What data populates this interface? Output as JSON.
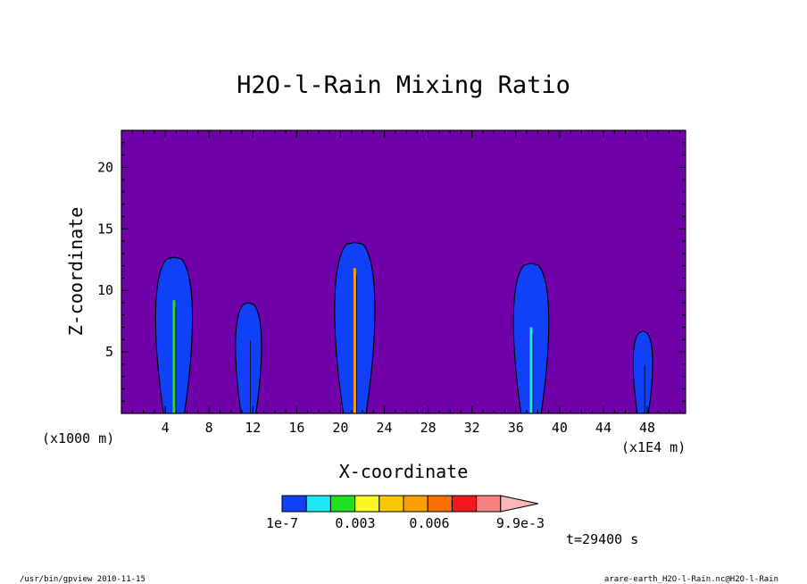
{
  "chart_data": {
    "type": "contour",
    "title": "H2O-l-Rain Mixing Ratio",
    "xlabel": "X-coordinate",
    "ylabel": "Z-coordinate",
    "x_unit_left": "(x1000 m)",
    "x_unit_right": "(x1E4 m)",
    "xlim": [
      0,
      51.5
    ],
    "ylim": [
      0,
      23
    ],
    "x_ticks": [
      4,
      8,
      12,
      16,
      20,
      24,
      28,
      32,
      36,
      40,
      44,
      48
    ],
    "y_ticks": [
      5,
      10,
      15,
      20
    ],
    "background_level_color": "#7000a8",
    "levels": [
      {
        "lower": 1e-07,
        "color": "#1040f8"
      },
      {
        "color": "#20e8f8"
      },
      {
        "color": "#20e020"
      },
      {
        "color": "#f8f820"
      },
      {
        "color": "#f8c800"
      },
      {
        "color": "#f8a000"
      },
      {
        "color": "#f87000"
      },
      {
        "color": "#f01818"
      },
      {
        "upper": 0.0099,
        "color": "#f88080"
      },
      {
        "color": "#f8b8b8",
        "note": "above 9.9e-3"
      }
    ],
    "colorbar_labels": [
      "1e-7",
      "0.003",
      "0.006",
      "9.9e-3"
    ],
    "plumes": [
      {
        "x_center": 4.8,
        "top": 12.7,
        "core_top": 9.2,
        "core_color": "#20e020"
      },
      {
        "x_center": 11.6,
        "top": 9.0,
        "core_top": 6.5,
        "core_color": "#1040f8"
      },
      {
        "x_center": 21.3,
        "top": 13.9,
        "core_top": 11.8,
        "core_color": "#f8a000"
      },
      {
        "x_center": 37.4,
        "top": 12.2,
        "core_top": 7.0,
        "core_color": "#20e8f8"
      },
      {
        "x_center": 47.6,
        "top": 6.7,
        "core_top": 4.5,
        "core_color": "#1040f8"
      }
    ],
    "time_label": "t=29400 s",
    "footer_left": "/usr/bin/gpview  2010-11-15",
    "footer_right": "arare-earth_H2O-l-Rain.nc@H2O-l-Rain"
  }
}
